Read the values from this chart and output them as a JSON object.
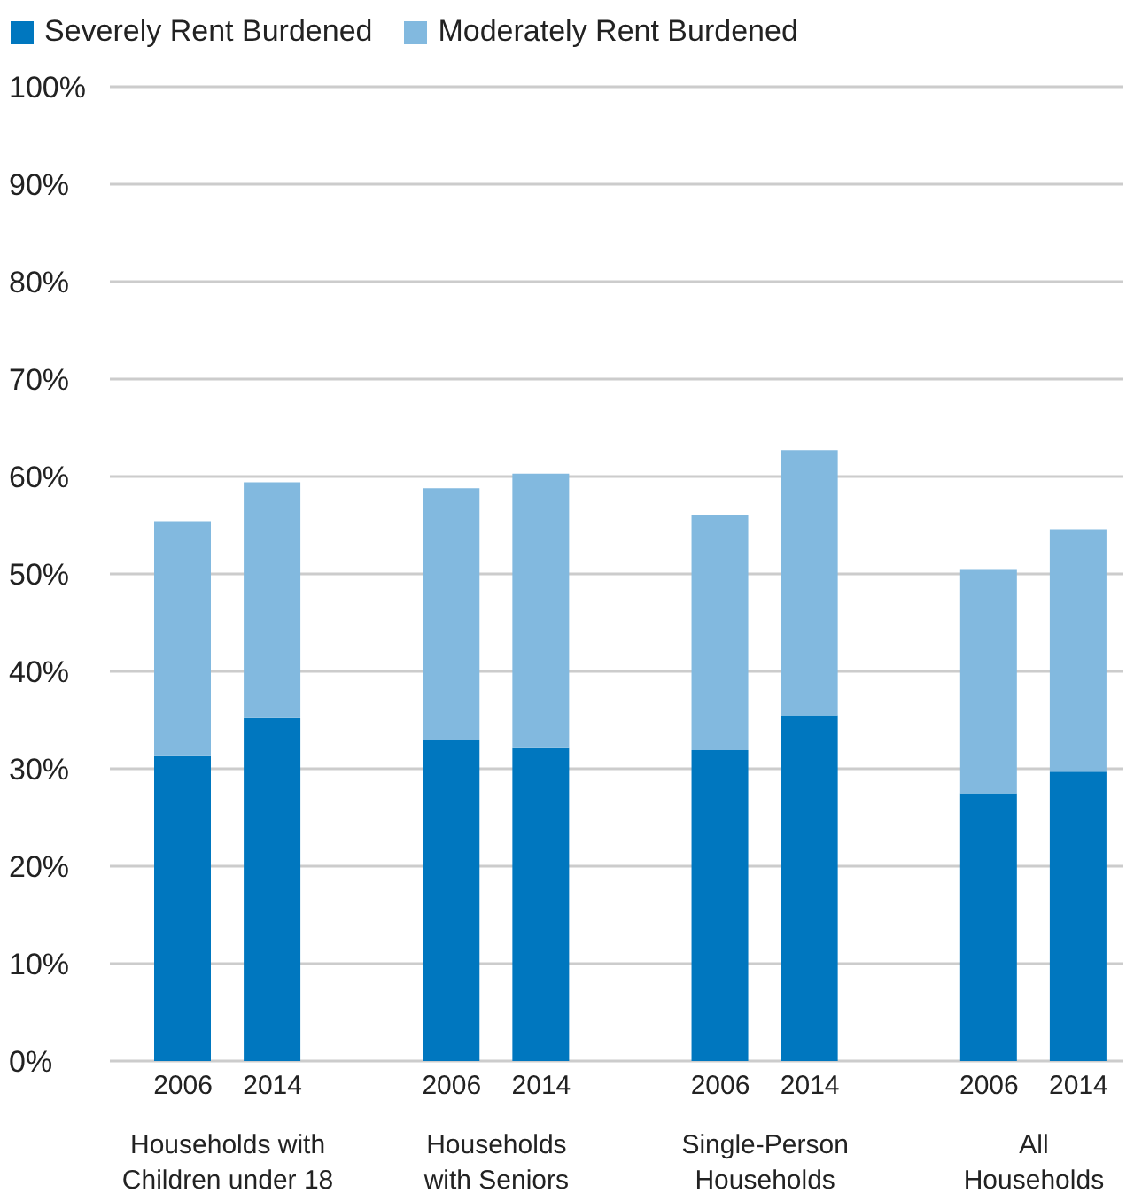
{
  "chart_data": {
    "type": "bar",
    "stacked": true,
    "legend": "top left",
    "grid": "y",
    "categories": [
      "2006",
      "2014",
      null,
      "2006",
      "2014",
      null,
      "2006",
      "2014",
      null,
      "2006",
      "2014"
    ],
    "series": [
      {
        "name": "Severely Rent Burdened",
        "color": "#0077bf",
        "values": [
          31.3,
          35.2,
          null,
          33.0,
          32.2,
          null,
          31.9,
          35.5,
          null,
          27.5,
          29.7
        ]
      },
      {
        "name": "Moderately Rent Burdened",
        "color": "#82b9df",
        "values": [
          24.1,
          24.2,
          null,
          25.8,
          28.1,
          null,
          24.2,
          27.2,
          null,
          23.0,
          24.9
        ]
      }
    ],
    "ylim": [
      0,
      100
    ],
    "yticks": [
      {
        "value": 0,
        "label": "0%"
      },
      {
        "value": 10,
        "label": "10%"
      },
      {
        "value": 20,
        "label": "20%"
      },
      {
        "value": 30,
        "label": "30%"
      },
      {
        "value": 40,
        "label": "40%"
      },
      {
        "value": 50,
        "label": "50%"
      },
      {
        "value": 60,
        "label": "60%"
      },
      {
        "value": 70,
        "label": "70%"
      },
      {
        "value": 80,
        "label": "80%"
      },
      {
        "value": 90,
        "label": "90%"
      },
      {
        "value": 100,
        "label": "100%"
      }
    ],
    "annotations": [
      "Households with\nChildren under 18",
      "Households\nwith Seniors",
      "Single-Person\nHouseholds",
      "All\nHouseholds"
    ]
  }
}
